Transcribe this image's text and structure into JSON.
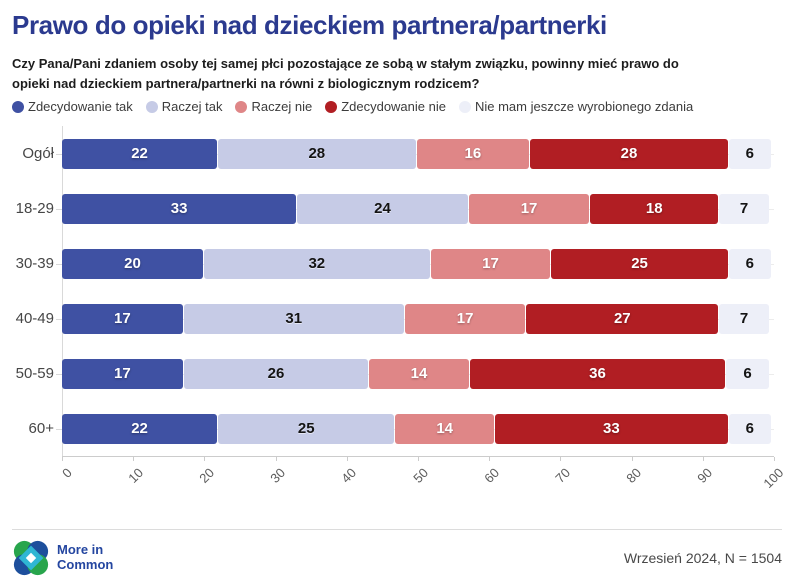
{
  "title": "Prawo do opieki nad dzieckiem partnera/partnerki",
  "subtitle": {
    "line1": "Czy Pana/Pani zdaniem osoby tej samej płci pozostające ze sobą w stałym związku, powinny mieć prawo do",
    "line2": "opieki nad dzieckiem partnera/partnerki na równi z biologicznym rodzicem?"
  },
  "legend": {
    "items": [
      {
        "label": "Zdecydowanie tak",
        "color": "#3f51a3"
      },
      {
        "label": "Raczej tak",
        "color": "#c6cbe6"
      },
      {
        "label": "Raczej nie",
        "color": "#df8687"
      },
      {
        "label": "Zdecydowanie nie",
        "color": "#b11e23"
      },
      {
        "label": "Nie mam jeszcze wyrobionego zdania",
        "color": "#edeff8"
      }
    ]
  },
  "chart_data": {
    "type": "bar",
    "orientation": "horizontal",
    "stacked": true,
    "categories": [
      "Ogół",
      "18-29",
      "30-39",
      "40-49",
      "50-59",
      "60+"
    ],
    "series": [
      {
        "name": "Zdecydowanie tak",
        "color": "#3f51a3",
        "values": [
          22,
          33,
          20,
          17,
          17,
          22
        ]
      },
      {
        "name": "Raczej tak",
        "color": "#c6cbe6",
        "values": [
          28,
          24,
          32,
          31,
          26,
          25
        ]
      },
      {
        "name": "Raczej nie",
        "color": "#df8687",
        "values": [
          16,
          17,
          17,
          17,
          14,
          14
        ]
      },
      {
        "name": "Zdecydowanie nie",
        "color": "#b11e23",
        "values": [
          28,
          18,
          25,
          27,
          36,
          33
        ]
      },
      {
        "name": "Nie mam jeszcze wyrobionego zdania",
        "color": "#edeff8",
        "values": [
          6,
          7,
          6,
          7,
          6,
          6
        ]
      }
    ],
    "xlim": [
      0,
      100
    ],
    "xticks": [
      "0",
      "10",
      "20",
      "30",
      "40",
      "50",
      "60",
      "70",
      "80",
      "90",
      "100"
    ],
    "grid": "horizontal-row-lines",
    "legend_position": "top",
    "value_labels": "inside-center"
  },
  "footer": {
    "brand_line1": "More in",
    "brand_line2": "Common",
    "source": "Wrzesień 2024, N = 1504"
  }
}
